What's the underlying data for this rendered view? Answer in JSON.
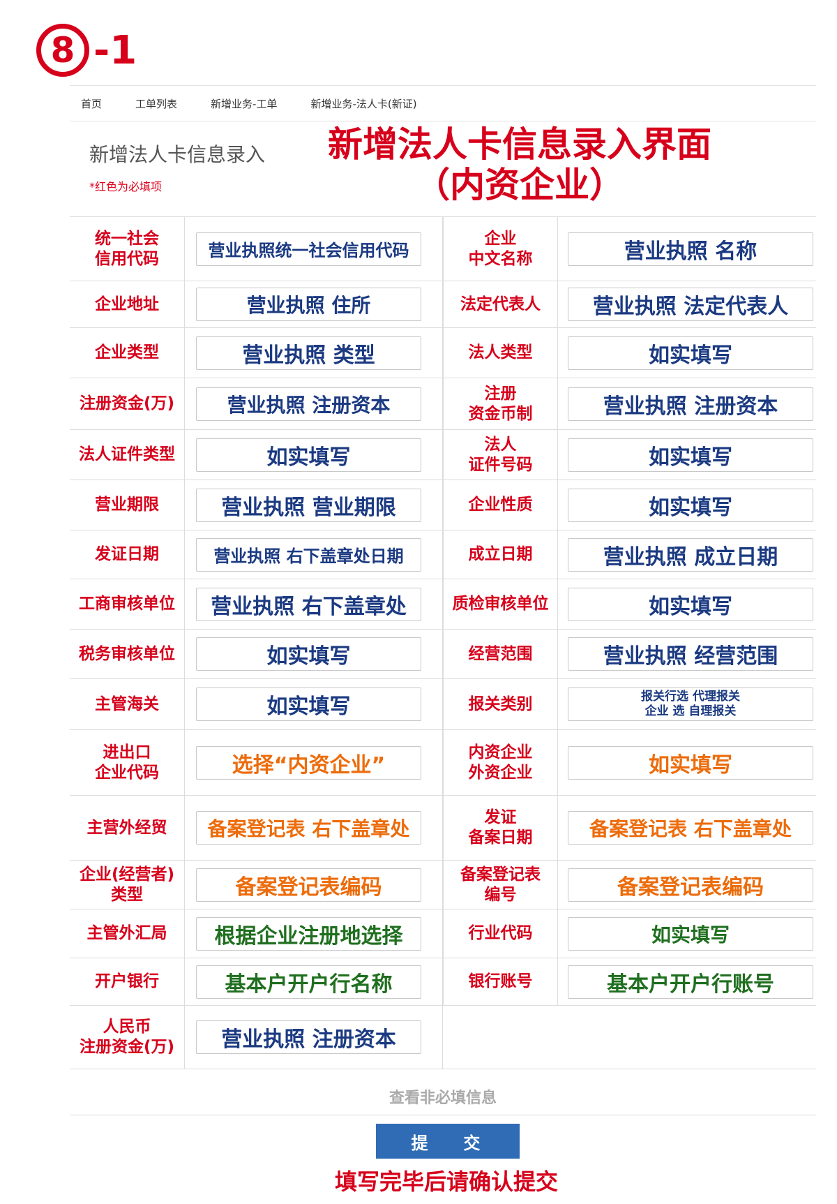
{
  "step": {
    "number": "8",
    "suffix": "-1"
  },
  "breadcrumb": [
    "首页",
    "工单列表",
    "新增业务-工单",
    "新增业务-法人卡(新证)"
  ],
  "form_title": "新增法人卡信息录入",
  "required_note": "*红色为必填项",
  "overlay_title": {
    "line1": "新增法人卡信息录入界面",
    "line2": "（内资企业）"
  },
  "rows": [
    {
      "l1": "统一社会\n信用代码",
      "v1": "营业执照统一社会信用代码",
      "l2": "企业\n中文名称",
      "v2": "营业执照 名称"
    },
    {
      "l1": "企业地址",
      "v1": "营业执照 住所",
      "l2": "法定代表人",
      "v2": "营业执照 法定代表人"
    },
    {
      "l1": "企业类型",
      "v1": "营业执照 类型",
      "l2": "法人类型",
      "v2": "如实填写"
    },
    {
      "l1": "注册资金(万)",
      "v1": "营业执照 注册资本",
      "l2": "注册\n资金币制",
      "v2": "营业执照 注册资本"
    },
    {
      "l1": "法人证件类型",
      "v1": "如实填写",
      "l2": "法人\n证件号码",
      "v2": "如实填写"
    },
    {
      "l1": "营业期限",
      "v1": "营业执照 营业期限",
      "l2": "企业性质",
      "v2": "如实填写"
    },
    {
      "l1": "发证日期",
      "v1": "营业执照 右下盖章处日期",
      "l2": "成立日期",
      "v2": "营业执照 成立日期"
    },
    {
      "l1": "工商审核单位",
      "v1": "营业执照 右下盖章处",
      "l2": "质检审核单位",
      "v2": "如实填写"
    },
    {
      "l1": "税务审核单位",
      "v1": "如实填写",
      "l2": "经营范围",
      "v2": "营业执照 经营范围"
    },
    {
      "l1": "主管海关",
      "v1": "如实填写",
      "l2": "报关类别",
      "v2a": "报关行选 代理报关",
      "v2b": "企业 选 自理报关"
    },
    {
      "l1": "进出口\n企业代码",
      "v1": "选择“内资企业”",
      "l2": "内资企业\n外资企业",
      "v2": "如实填写"
    },
    {
      "l1": "主营外经贸",
      "v1": "备案登记表 右下盖章处",
      "l2": "发证\n备案日期",
      "v2": "备案登记表 右下盖章处"
    },
    {
      "l1": "企业(经营者)\n类型",
      "v1": "备案登记表编码",
      "l2": "备案登记表\n编号",
      "v2": "备案登记表编码"
    },
    {
      "l1": "主管外汇局",
      "v1": "根据企业注册地选择",
      "l2": "行业代码",
      "v2": "如实填写"
    },
    {
      "l1": "开户银行",
      "v1": "基本户开户行名称",
      "l2": "银行账号",
      "v2": "基本户开户行账号"
    },
    {
      "l1": "人民币\n注册资金(万)",
      "v1": "营业执照 注册资本"
    }
  ],
  "more_link": "查看非必填信息",
  "submit_label": "提 交",
  "footer_note": "填写完毕后请确认提交",
  "colors": {
    "red": "#d7001b",
    "blue": "#1b3a82",
    "orange": "#ec6c0c",
    "green": "#1f6f1f",
    "button": "#2f6cb5"
  }
}
